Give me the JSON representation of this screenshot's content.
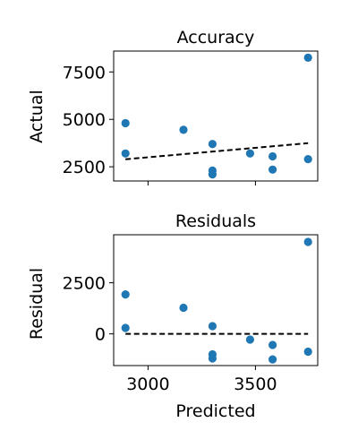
{
  "chart_data": [
    {
      "type": "scatter",
      "title": "Accuracy",
      "xlabel": "",
      "ylabel": "Actual",
      "xlim": [
        2840,
        3790
      ],
      "ylim": [
        1750,
        8600
      ],
      "xticks": [
        3000,
        3500
      ],
      "xtick_labels_visible": false,
      "yticks": [
        2500,
        5000,
        7500
      ],
      "ytick_labels": [
        "2500",
        "5000",
        "7500"
      ],
      "points": [
        {
          "x": 2895,
          "y": 4800
        },
        {
          "x": 2895,
          "y": 3200
        },
        {
          "x": 3165,
          "y": 4450
        },
        {
          "x": 3300,
          "y": 3700
        },
        {
          "x": 3300,
          "y": 2300
        },
        {
          "x": 3300,
          "y": 2100
        },
        {
          "x": 3475,
          "y": 3200
        },
        {
          "x": 3580,
          "y": 3050
        },
        {
          "x": 3580,
          "y": 2350
        },
        {
          "x": 3745,
          "y": 2900
        },
        {
          "x": 3745,
          "y": 8250
        }
      ],
      "reference_line": {
        "style": "dashed",
        "color": "#000000",
        "x": [
          2895,
          3745
        ],
        "y": [
          2895,
          3745
        ]
      }
    },
    {
      "type": "scatter",
      "title": "Residuals",
      "xlabel": "Predicted",
      "ylabel": "Residual",
      "xlim": [
        2840,
        3790
      ],
      "ylim": [
        -1550,
        4850
      ],
      "xticks": [
        3000,
        3500
      ],
      "xtick_labels": [
        "3000",
        "3500"
      ],
      "yticks": [
        0,
        2500
      ],
      "ytick_labels": [
        "0",
        "2500"
      ],
      "points": [
        {
          "x": 2895,
          "y": 1930
        },
        {
          "x": 2895,
          "y": 290
        },
        {
          "x": 3165,
          "y": 1280
        },
        {
          "x": 3300,
          "y": 380
        },
        {
          "x": 3300,
          "y": -1000
        },
        {
          "x": 3300,
          "y": -1200
        },
        {
          "x": 3475,
          "y": -280
        },
        {
          "x": 3580,
          "y": -540
        },
        {
          "x": 3580,
          "y": -1250
        },
        {
          "x": 3745,
          "y": -870
        },
        {
          "x": 3745,
          "y": 4500
        }
      ],
      "reference_line": {
        "style": "dashed",
        "color": "#000000",
        "x": [
          2895,
          3745
        ],
        "y": [
          0,
          0
        ]
      }
    }
  ],
  "colors": {
    "marker": "#1f77b4",
    "reference_line": "#000000",
    "background": "#ffffff"
  }
}
